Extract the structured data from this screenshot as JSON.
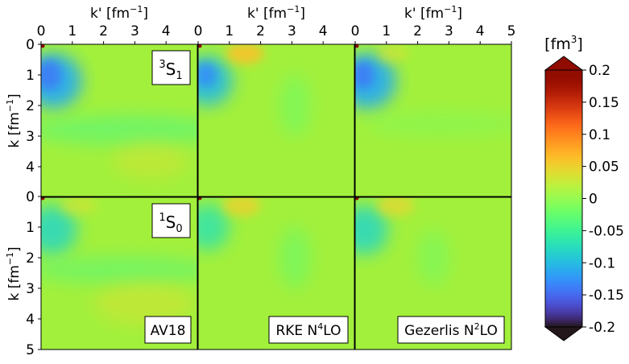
{
  "chart_data": {
    "type": "heatmap",
    "x_axis_label": "k' [fm",
    "x_axis_label_sup": "−1",
    "x_axis_label_end": "]",
    "y_axis_label": "k [fm",
    "y_axis_label_sup": "−1",
    "y_axis_label_end": "]",
    "xlim": [
      0,
      5
    ],
    "ylim": [
      0,
      5
    ],
    "x_ticks_panel": [
      "0",
      "1",
      "2",
      "3",
      "4"
    ],
    "x_ticks_last_panel": [
      "0",
      "1",
      "2",
      "3",
      "4",
      "5"
    ],
    "y_ticks_top_row": [
      "0",
      "1",
      "2",
      "3",
      "4"
    ],
    "y_ticks_bottom_row": [
      "0",
      "1",
      "2",
      "3",
      "4",
      "5"
    ],
    "rows": [
      {
        "channel": "S",
        "channel_sup": "3",
        "channel_sub": "1"
      },
      {
        "channel": "S",
        "channel_sup": "1",
        "channel_sub": "0"
      }
    ],
    "columns": [
      {
        "name_main": "AV18",
        "name_sup": "",
        "name_tail": ""
      },
      {
        "name_main": "RKE N",
        "name_sup": "4",
        "name_tail": "LO"
      },
      {
        "name_main": "Gezerlis N",
        "name_sup": "2",
        "name_tail": "LO"
      }
    ],
    "colorbar": {
      "label_main": "[fm",
      "label_sup": "3",
      "label_end": "]",
      "range": [
        -0.2,
        0.2
      ],
      "ticks": [
        "0.2",
        "0.15",
        "0.1",
        "0.05",
        "0",
        "-0.05",
        "-0.1",
        "-0.15",
        "-0.2"
      ],
      "colormap": "turbo",
      "extend": "both"
    }
  },
  "colors": {
    "background_level": "#a2f03c",
    "frame": "#000000"
  }
}
